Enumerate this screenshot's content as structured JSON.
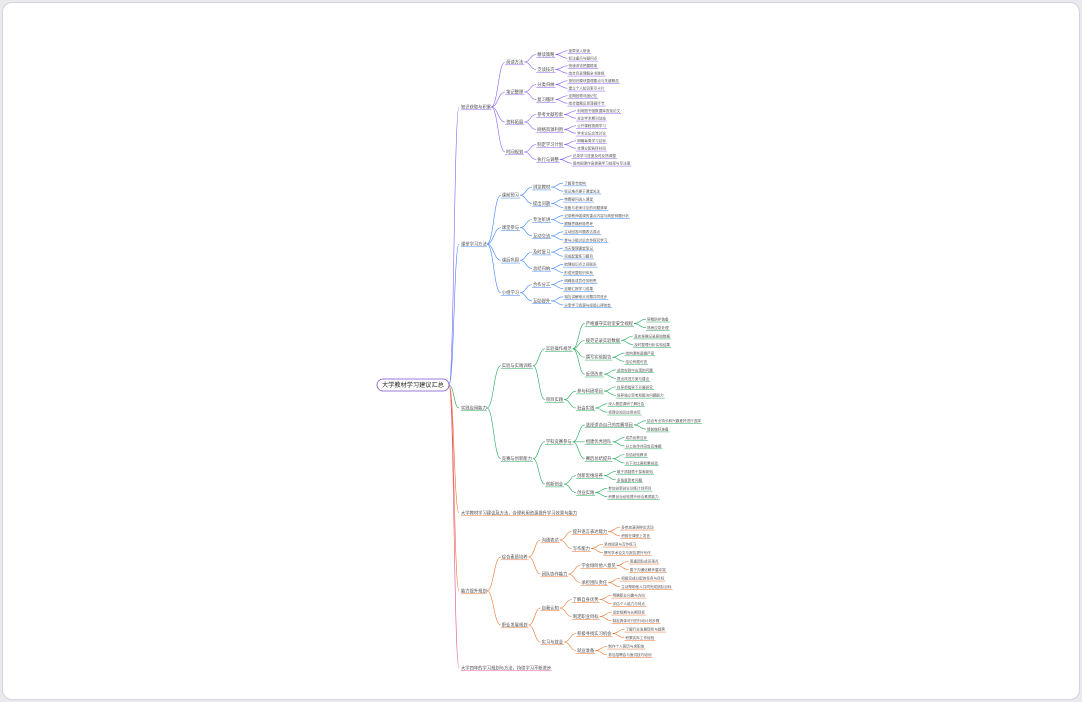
{
  "root": {
    "label": "大学教材学习建议汇总"
  },
  "colors": {
    "branch1": "#8a5cf6",
    "branch2": "#3b82f6",
    "branch3": "#22a85a",
    "branch4": "#e6702a",
    "branch5": "#e24a8f",
    "root_border": "#7b4fd3"
  },
  "branches": [
    {
      "label": "知识获取与积累",
      "color": "branch1",
      "children": [
        {
          "label": "阅读方法",
          "children": [
            {
              "label": "精读策略",
              "leaves": [
                "逐章深入研读",
                "标注重点与疑问点"
              ]
            },
            {
              "label": "泛读技巧",
              "leaves": [
                "快速浏览把握框架",
                "结合目录理解全书脉络"
              ]
            }
          ]
        },
        {
          "label": "笔记整理",
          "children": [
            {
              "label": "分类归纳",
              "leaves": [
                "按知识模块整理要点与关键概念",
                "建立个人知识索引卡片"
              ]
            },
            {
              "label": "复习循环",
              "leaves": [
                "定期回顾巩固记忆",
                "结合错题反思薄弱环节"
              ]
            }
          ]
        },
        {
          "label": "资料拓展",
          "children": [
            {
              "label": "参考文献检索",
              "leaves": [
                "利用图书馆数据库查找论文",
                "关注学术期刊动态"
              ]
            },
            {
              "label": "网络资源利用",
              "leaves": [
                "公开课程视频学习",
                "学术论坛交流讨论"
              ]
            }
          ]
        },
        {
          "label": "时间规划",
          "children": [
            {
              "label": "制定学习计划",
              "leaves": [
                "明确每周学习目标",
                "合理分配各科时间"
              ]
            },
            {
              "label": "执行与调整",
              "leaves": [
                "记录学习进度及时反馈调整",
                "保持规律作息提高学习效率与专注度"
              ]
            }
          ]
        }
      ]
    },
    {
      "label": "课堂学习方法",
      "color": "branch2",
      "children": [
        {
          "label": "课前预习",
          "children": [
            {
              "label": "浏览教材",
              "leaves": [
                "了解章节结构",
                "标记难点便于课堂关注"
              ]
            },
            {
              "label": "提出问题",
              "leaves": [
                "带着疑问进入课堂",
                "准备与老师讨论的问题清单"
              ]
            }
          ]
        },
        {
          "label": "课堂参与",
          "children": [
            {
              "label": "专注听讲",
              "leaves": [
                "记录教师强调的重点内容与典型例题分析",
                "跟随思路积极思考"
              ]
            },
            {
              "label": "互动交流",
              "leaves": [
                "主动回答问题表达观点",
                "参与小组讨论合作探究学习"
              ]
            }
          ]
        },
        {
          "label": "课后巩固",
          "children": [
            {
              "label": "及时复习",
              "leaves": [
                "当天整理课堂笔记",
                "完成配套练习题目"
              ]
            },
            {
              "label": "总结归纳",
              "leaves": [
                "梳理知识点之间联系",
                "形成完整知识体系"
              ]
            }
          ]
        },
        {
          "label": "小组学习",
          "children": [
            {
              "label": "合作分工",
              "leaves": [
                "明确各成员任务职责",
                "定期汇报学习成果"
              ]
            },
            {
              "label": "互助提升",
              "leaves": [
                "相互讲解难点问题共同进步",
                "分享学习资源与经验心得体会"
              ]
            }
          ]
        }
      ]
    },
    {
      "label": "实践应用能力",
      "color": "branch3",
      "children": [
        {
          "label": "实验与实践训练",
          "children": [
            {
              "label": "实验操作规范",
              "children": [
                {
                  "label": "严格遵守实验室安全规程",
                  "leaves": [
                    "穿戴防护装备",
                    "熟悉应急处理"
                  ]
                },
                {
                  "label": "规范记录实验数据",
                  "leaves": [
                    "真实准确记录原始数据",
                    "及时整理分析实验结果"
                  ]
                },
                {
                  "label": "撰写实验报告",
                  "leaves": [
                    "结构清晰逻辑严密",
                    "结论有据可查"
                  ]
                },
                {
                  "label": "反思改进",
                  "leaves": [
                    "总结实验中出现的问题",
                    "提出改进方案与建议"
                  ]
                }
              ]
            },
            {
              "label": "项目实践",
              "children": [
                {
                  "label": "参与科研项目",
                  "leaves": [
                    "在导师指导下开展研究",
                    "培养独立思考和解决问题能力"
                  ]
                },
                {
                  "label": "社会实践",
                  "leaves": [
                    "深入基层调研了解社会",
                    "将理论知识应用实际"
                  ]
                }
              ]
            }
          ]
        },
        {
          "label": "竞赛与创新能力",
          "children": [
            {
              "label": "学科竞赛参与",
              "children": [
                {
                  "label": "选择适合自己的竞赛项目",
                  "leaves": [
                    "结合专业特长和兴趣爱好进行选择",
                    "提前做好准备"
                  ]
                },
                {
                  "label": "组建优秀团队",
                  "leaves": [
                    "成员优势互补",
                    "分工协作共同攻克难题"
                  ]
                },
                {
                  "label": "赛后总结提升",
                  "leaves": [
                    "总结经验教训",
                    "为下次比赛积累经验"
                  ]
                }
              ]
            },
            {
              "label": "创新创业",
              "children": [
                {
                  "label": "创新思维培养",
                  "leaves": [
                    "敢于质疑勇于探索新知",
                    "多角度思考问题"
                  ]
                },
                {
                  "label": "创业实践",
                  "leaves": [
                    "参加创新创业训练计划项目",
                    "积累创业经验提升综合素质能力"
                  ]
                }
              ]
            }
          ]
        }
      ]
    },
    {
      "label": "大学教材学习建议及方法，合理利用资源提升学习效果与能力",
      "color": "branch4",
      "children": []
    },
    {
      "label": "能力提升规划",
      "color": "branch4",
      "children": [
        {
          "label": "综合素质培养",
          "children": [
            {
              "label": "沟通表达",
              "children": [
                {
                  "label": "提升语言表达能力",
                  "leaves": [
                    "多参加演讲辩论活动",
                    "积极在课堂上发言"
                  ]
                },
                {
                  "label": "写作能力",
                  "leaves": [
                    "坚持阅读与写作练习",
                    "撰写学术论文与报告提升写作"
                  ]
                }
              ]
            },
            {
              "label": "团队协作能力",
              "children": [
                {
                  "label": "学会倾听他人意见",
                  "leaves": [
                    "尊重团队成员观点",
                    "善于沟通化解矛盾冲突"
                  ]
                },
                {
                  "label": "承担团队责任",
                  "leaves": [
                    "积极完成分配的任务与目标",
                    "主动帮助他人共同完成团队目标"
                  ]
                }
              ]
            }
          ]
        },
        {
          "label": "职业发展规划",
          "children": [
            {
              "label": "自我认知",
              "children": [
                {
                  "label": "了解自身优势",
                  "leaves": [
                    "明确职业兴趣与方向",
                    "评估个人能力与特点"
                  ]
                },
                {
                  "label": "制定职业目标",
                  "leaves": [
                    "设定短期与长期目标",
                    "制定具体可行的行动计划步骤"
                  ]
                }
              ]
            },
            {
              "label": "实习与就业",
              "children": [
                {
                  "label": "积极寻找实习机会",
                  "leaves": [
                    "了解行业发展现状与趋势",
                    "积累实际工作经验"
                  ]
                },
                {
                  "label": "就业准备",
                  "leaves": [
                    "制作个人简历与求职信",
                    "参加招聘会与面试技巧培训"
                  ]
                }
              ]
            }
          ]
        }
      ]
    },
    {
      "label": "大学四年的学习规划与方法，持续学习不断进步",
      "color": "branch5",
      "children": []
    }
  ]
}
